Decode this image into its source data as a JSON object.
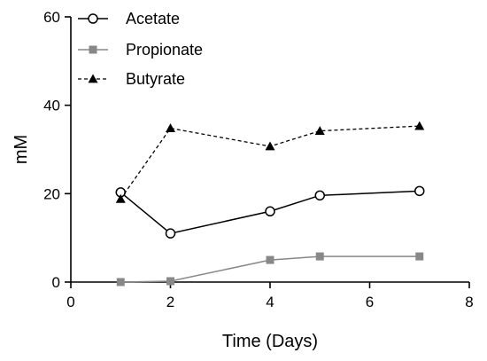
{
  "chart_data": {
    "type": "line",
    "xlabel": "Time (Days)",
    "ylabel": "mM",
    "xlim": [
      0,
      8
    ],
    "ylim": [
      0,
      60
    ],
    "xticks": [
      0,
      2,
      4,
      6,
      8
    ],
    "yticks": [
      0,
      20,
      40,
      60
    ],
    "grid": false,
    "legend_position": "top-left",
    "series": [
      {
        "name": "Acetate",
        "marker": "open-circle",
        "line": "solid",
        "color": "#000000",
        "points": [
          [
            1,
            20.3
          ],
          [
            2,
            11.0
          ],
          [
            4,
            16.0
          ],
          [
            5,
            19.6
          ],
          [
            7,
            20.6
          ]
        ]
      },
      {
        "name": "Propionate",
        "marker": "filled-square",
        "line": "solid",
        "color": "#888888",
        "points": [
          [
            1,
            0.0
          ],
          [
            2,
            0.2
          ],
          [
            4,
            5.0
          ],
          [
            5,
            5.8
          ],
          [
            7,
            5.8
          ]
        ]
      },
      {
        "name": "Butyrate",
        "marker": "filled-triangle",
        "line": "dashed",
        "color": "#000000",
        "points": [
          [
            1,
            18.8
          ],
          [
            2,
            34.8
          ],
          [
            4,
            30.7
          ],
          [
            5,
            34.2
          ],
          [
            7,
            35.3
          ]
        ]
      }
    ]
  }
}
